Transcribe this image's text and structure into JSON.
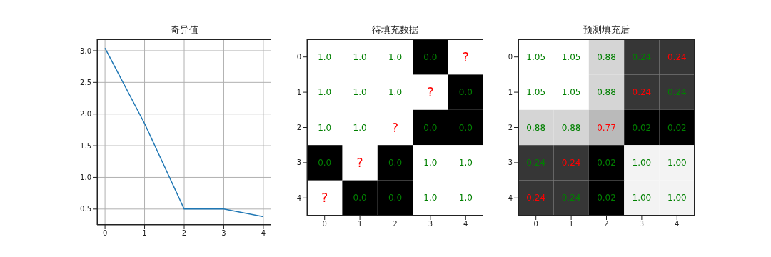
{
  "chart_data": [
    {
      "type": "line",
      "title": "奇异值",
      "x": [
        0,
        1,
        2,
        3,
        4
      ],
      "values": [
        3.04,
        1.85,
        0.5,
        0.5,
        0.38
      ],
      "color": "#1f77b4",
      "xlim": [
        -0.2,
        4.2
      ],
      "xticks": [
        0,
        1,
        2,
        3,
        4
      ],
      "ylim": [
        0.25,
        3.18
      ],
      "yticks": [
        0.5,
        {
          "value": 1,
          "label": "1.0"
        },
        1.5,
        {
          "value": 2,
          "label": "2.0"
        },
        2.5,
        {
          "value": 3,
          "label": "3.0"
        }
      ],
      "grid": true
    },
    {
      "type": "heatmap",
      "title": "待填充数据",
      "categories": [
        "0",
        "1",
        "2",
        "3",
        "4"
      ],
      "y_categories": [
        "0",
        "1",
        "2",
        "3",
        "4"
      ],
      "cells": [
        [
          1,
          1,
          1,
          0,
          null
        ],
        [
          1,
          1,
          1,
          null,
          0
        ],
        [
          1,
          1,
          null,
          0,
          0
        ],
        [
          0,
          null,
          0,
          1,
          1
        ],
        [
          null,
          0,
          0,
          1,
          1
        ]
      ],
      "cell_labels": [
        [
          "1.0",
          "1.0",
          "1.0",
          "0.0",
          "?"
        ],
        [
          "1.0",
          "1.0",
          "1.0",
          "?",
          "0.0"
        ],
        [
          "1.0",
          "1.0",
          "?",
          "0.0",
          "0.0"
        ],
        [
          "0.0",
          "?",
          "0.0",
          "1.0",
          "1.0"
        ],
        [
          "?",
          "0.0",
          "0.0",
          "1.0",
          "1.0"
        ]
      ]
    },
    {
      "type": "heatmap",
      "title": "预测填充后",
      "categories": [
        "0",
        "1",
        "2",
        "3",
        "4"
      ],
      "y_categories": [
        "0",
        "1",
        "2",
        "3",
        "4"
      ],
      "cells": [
        [
          1.05,
          1.05,
          0.88,
          0.24,
          0.24
        ],
        [
          1.05,
          1.05,
          0.88,
          0.24,
          0.24
        ],
        [
          0.88,
          0.88,
          0.77,
          0.02,
          0.02
        ],
        [
          0.24,
          0.24,
          0.02,
          1.0,
          1.0
        ],
        [
          0.24,
          0.24,
          0.02,
          1.0,
          1.0
        ]
      ],
      "cell_labels": [
        [
          "1.05",
          "1.05",
          "0.88",
          "0.24",
          "0.24"
        ],
        [
          "1.05",
          "1.05",
          "0.88",
          "0.24",
          "0.24"
        ],
        [
          "0.88",
          "0.88",
          "0.77",
          "0.02",
          "0.02"
        ],
        [
          "0.24",
          "0.24",
          "0.02",
          "1.00",
          "1.00"
        ],
        [
          "0.24",
          "0.24",
          "0.02",
          "1.00",
          "1.00"
        ]
      ]
    }
  ]
}
